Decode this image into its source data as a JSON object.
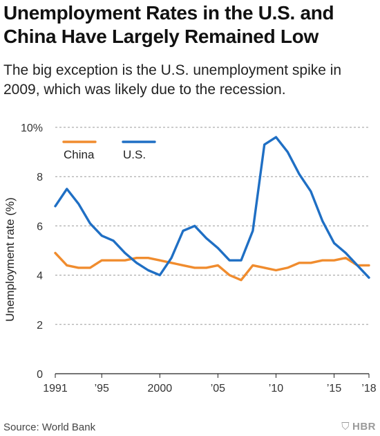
{
  "header": {
    "title": "Unemployment Rates in the U.S. and China Have Largely Remained Low",
    "subtitle": "The big exception is the U.S. unemployment spike in 2009, which was likely due to the recession."
  },
  "footer": {
    "source": "Source: World Bank",
    "brand": "HBR"
  },
  "chart_data": {
    "type": "line",
    "ylabel": "Unemployment rate (%)",
    "xlabel": "",
    "ylim": [
      0,
      10
    ],
    "xlim": [
      1991,
      2018
    ],
    "y_ticks": [
      {
        "value": 0,
        "label": "0"
      },
      {
        "value": 2,
        "label": "2"
      },
      {
        "value": 4,
        "label": "4"
      },
      {
        "value": 6,
        "label": "6"
      },
      {
        "value": 8,
        "label": "8"
      },
      {
        "value": 10,
        "label": "10%"
      }
    ],
    "x_ticks": [
      {
        "value": 1991,
        "label": "1991"
      },
      {
        "value": 1995,
        "label": "’95"
      },
      {
        "value": 2000,
        "label": "2000"
      },
      {
        "value": 2005,
        "label": "’05"
      },
      {
        "value": 2010,
        "label": "’10"
      },
      {
        "value": 2015,
        "label": "’15"
      },
      {
        "value": 2018,
        "label": "’18"
      }
    ],
    "grid": "horizontal dashed",
    "legend_position": "top-left",
    "x": [
      1991,
      1992,
      1993,
      1994,
      1995,
      1996,
      1997,
      1998,
      1999,
      2000,
      2001,
      2002,
      2003,
      2004,
      2005,
      2006,
      2007,
      2008,
      2009,
      2010,
      2011,
      2012,
      2013,
      2014,
      2015,
      2016,
      2017,
      2018
    ],
    "series": [
      {
        "name": "China",
        "color": "#f08c2e",
        "values": [
          4.9,
          4.4,
          4.3,
          4.3,
          4.6,
          4.6,
          4.6,
          4.7,
          4.7,
          4.6,
          4.5,
          4.4,
          4.3,
          4.3,
          4.4,
          4.0,
          3.8,
          4.4,
          4.3,
          4.2,
          4.3,
          4.5,
          4.5,
          4.6,
          4.6,
          4.7,
          4.4,
          4.4
        ]
      },
      {
        "name": "U.S.",
        "color": "#1f6fc4",
        "values": [
          6.8,
          7.5,
          6.9,
          6.1,
          5.6,
          5.4,
          4.9,
          4.5,
          4.2,
          4.0,
          4.7,
          5.8,
          6.0,
          5.5,
          5.1,
          4.6,
          4.6,
          5.8,
          9.3,
          9.6,
          9.0,
          8.1,
          7.4,
          6.2,
          5.3,
          4.9,
          4.4,
          3.9
        ]
      }
    ]
  }
}
